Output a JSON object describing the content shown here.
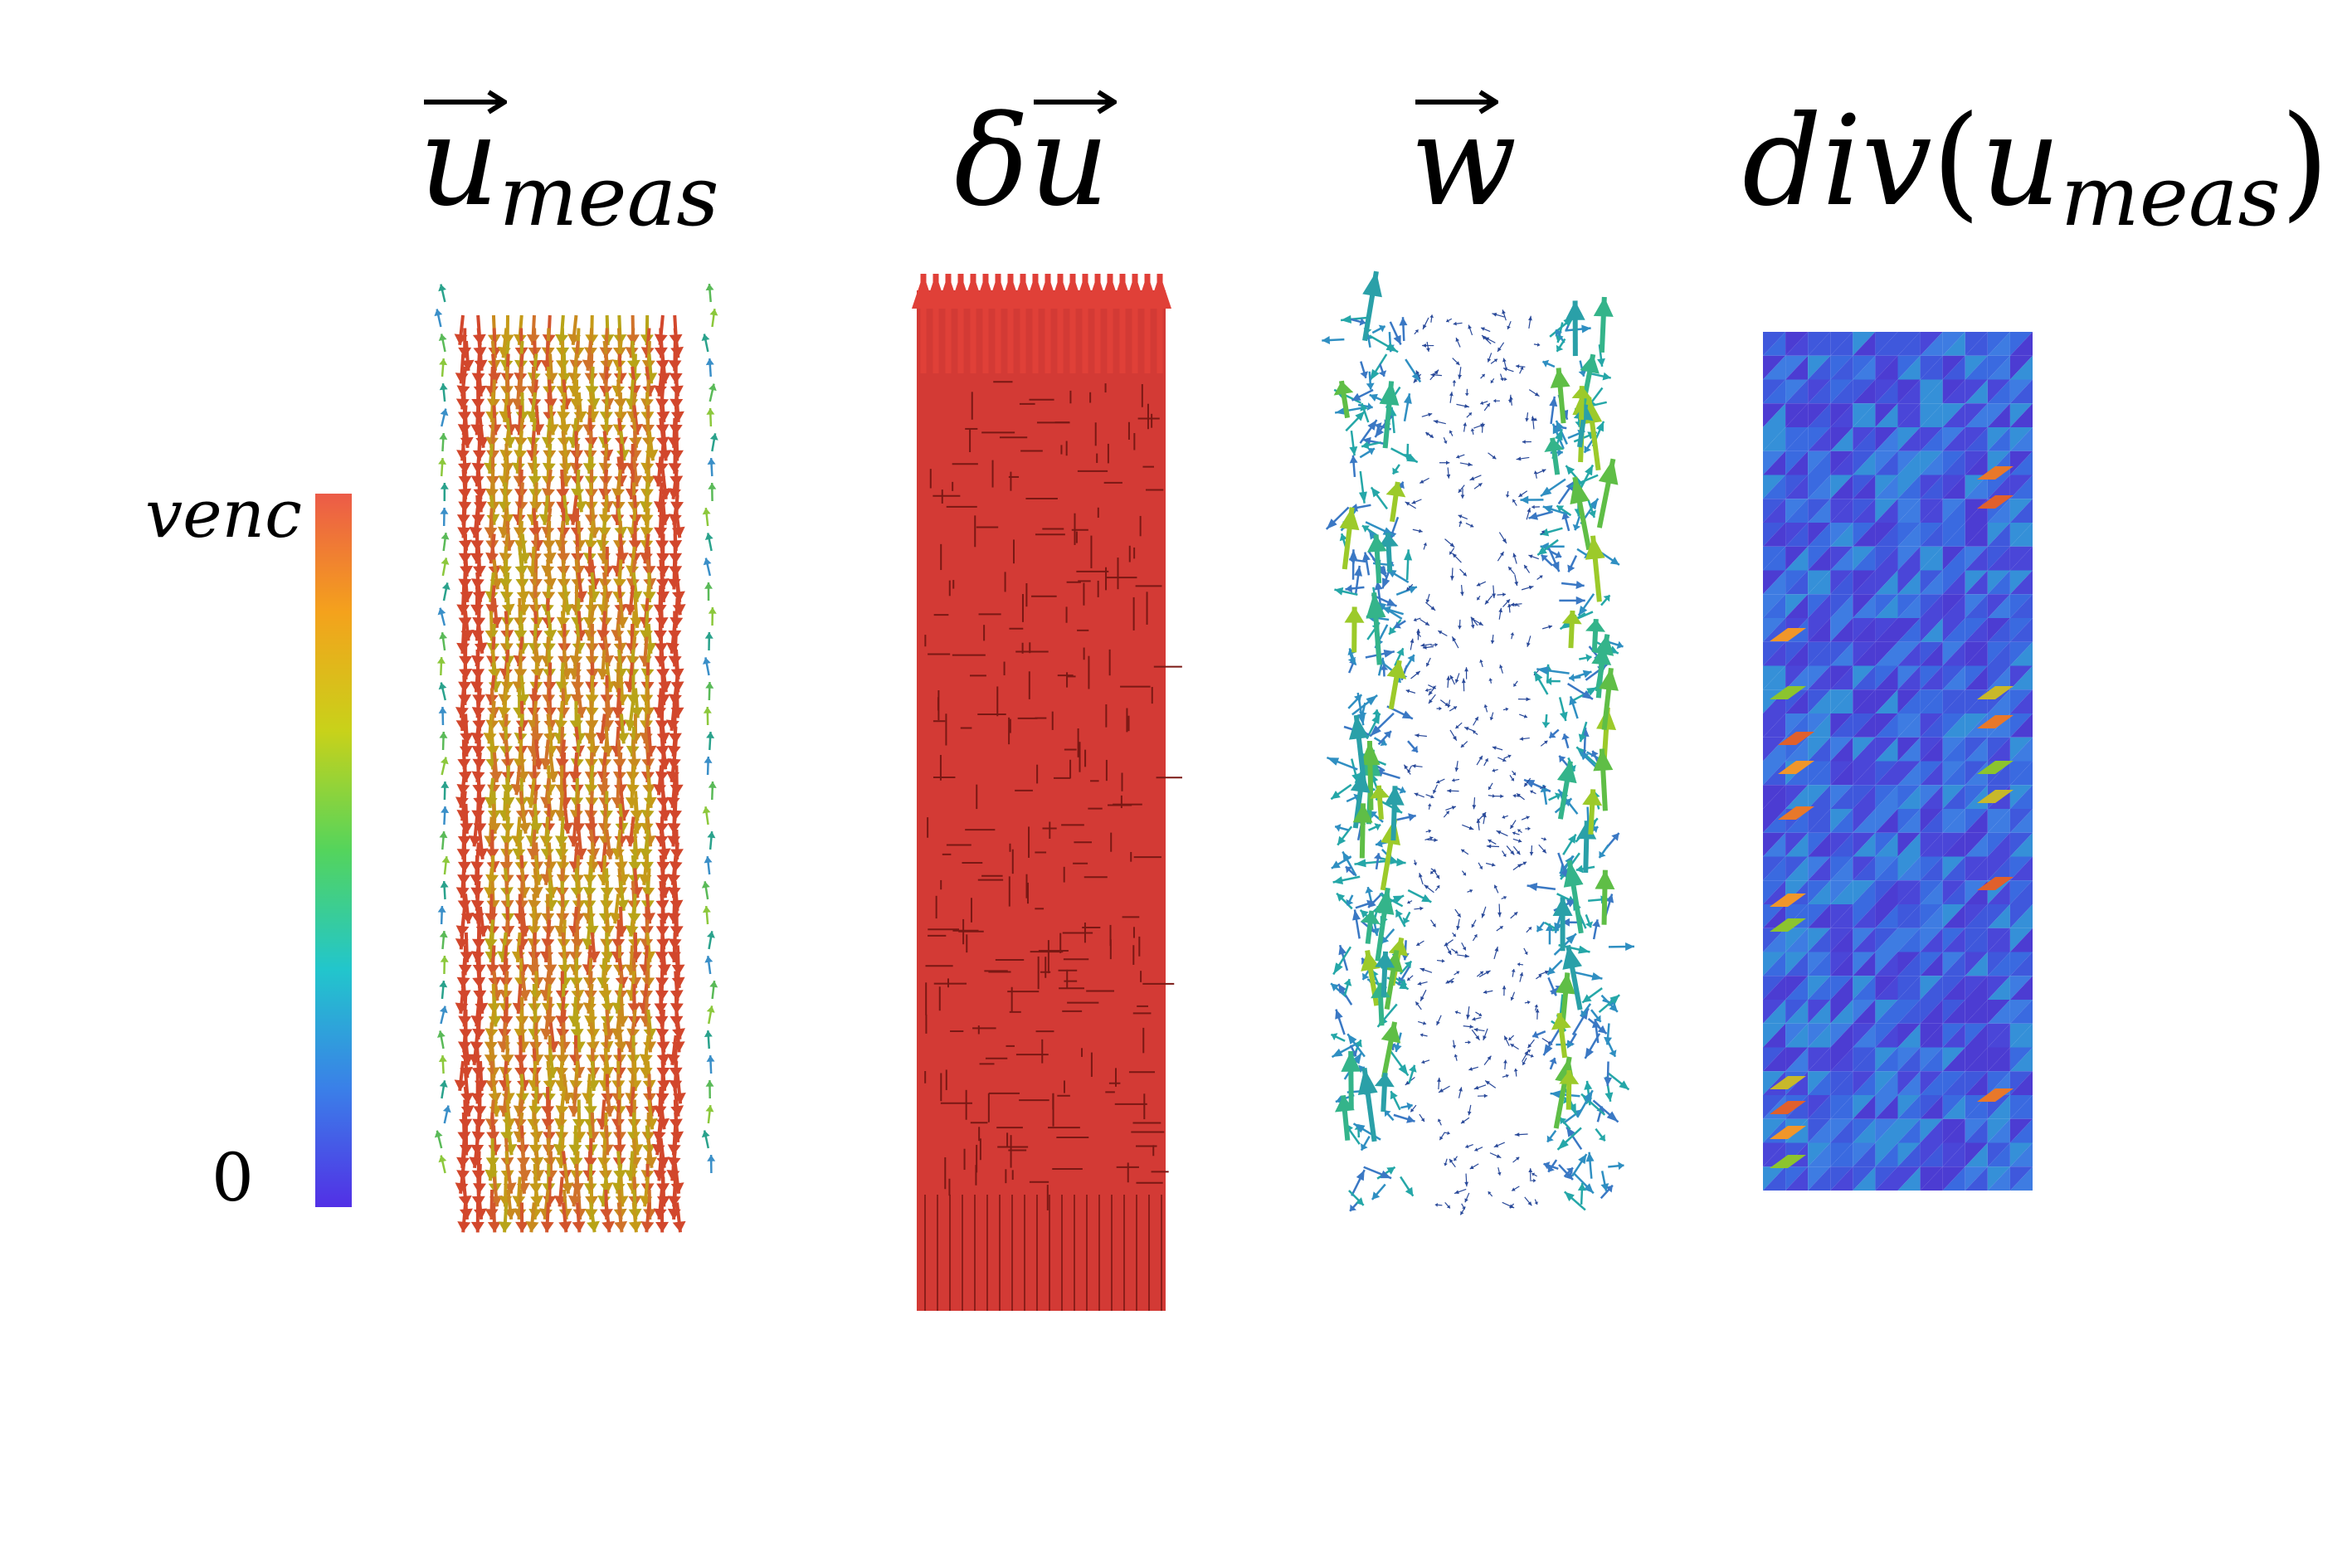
{
  "titles": {
    "u_meas": {
      "base": "u",
      "sub": "meas"
    },
    "delta_u": {
      "delta": "δ",
      "base": "u"
    },
    "w": {
      "base": "w"
    },
    "div": {
      "prefix": "div",
      "open": "(",
      "base": "u",
      "sub": "meas",
      "close": ")"
    }
  },
  "colorbar": {
    "max_label": "venc",
    "min_label": "0",
    "colormap": "turbo (blue to red)",
    "stops": [
      "#5230e6",
      "#3a80e8",
      "#22c6cc",
      "#54d45c",
      "#c8d21a",
      "#f4a21c",
      "#ec5b48"
    ]
  },
  "panels": [
    {
      "name": "u_meas vector field",
      "dominant_color": "#c8741e"
    },
    {
      "name": "delta u vector field",
      "dominant_color": "#d43a36"
    },
    {
      "name": "w vector field",
      "dominant_color": "#2f8fc2"
    },
    {
      "name": "div(u_meas) scalar field",
      "dominant_color": "#4a46d8"
    }
  ]
}
